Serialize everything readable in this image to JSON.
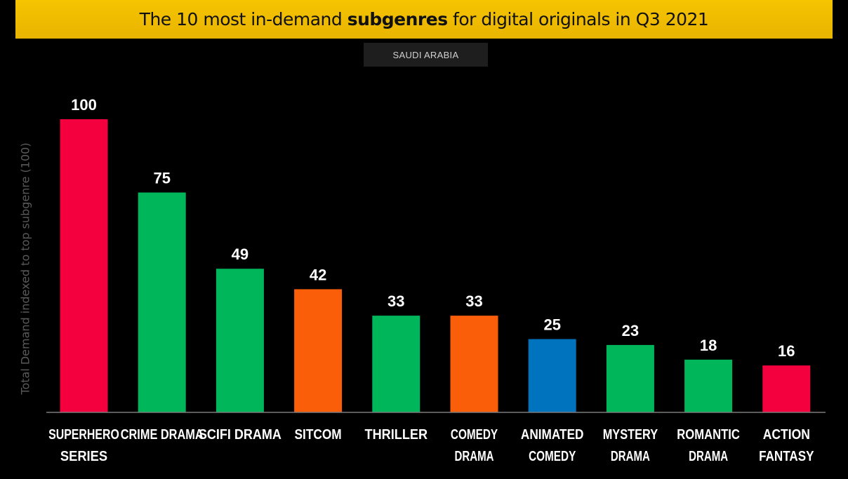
{
  "header": {
    "title_pre": "The 10 most in-demand ",
    "title_bold": "subgenres",
    "title_post": " for digital originals in Q3 2021",
    "market": "SAUDI ARABIA"
  },
  "colors": {
    "title_bar": "#f6c400",
    "background": "#000000",
    "red": "#f5003f",
    "green": "#00b65a",
    "orange": "#fb5e08",
    "blue": "#0073bf"
  },
  "chart_data": {
    "type": "bar",
    "title": "The 10 most in-demand subgenres for digital originals in Q3 2021",
    "subtitle": "SAUDI ARABIA",
    "xlabel": "",
    "ylabel": "Total Demand indexed to top subgenre (100)",
    "ylim": [
      0,
      100
    ],
    "grid": false,
    "categories": [
      [
        "SUPERHERO",
        "SERIES"
      ],
      [
        "CRIME DRAMA"
      ],
      [
        "SCIFI DRAMA"
      ],
      [
        "SITCOM"
      ],
      [
        "THRILLER"
      ],
      [
        "COMEDY",
        "DRAMA"
      ],
      [
        "ANIMATED",
        "COMEDY"
      ],
      [
        "MYSTERY",
        "DRAMA"
      ],
      [
        "ROMANTIC",
        "DRAMA"
      ],
      [
        "ACTION",
        "FANTASY"
      ]
    ],
    "values": [
      100,
      75,
      49,
      42,
      33,
      33,
      25,
      23,
      18,
      16
    ],
    "bar_colors": [
      "#f5003f",
      "#00b65a",
      "#00b65a",
      "#fb5e08",
      "#00b65a",
      "#fb5e08",
      "#0073bf",
      "#00b65a",
      "#00b65a",
      "#f5003f"
    ]
  }
}
